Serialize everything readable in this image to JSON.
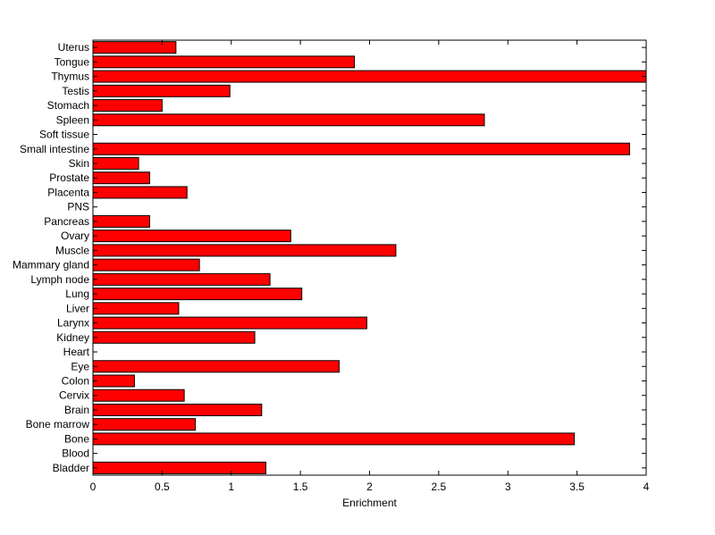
{
  "chart_data": {
    "type": "bar",
    "orientation": "horizontal",
    "title": "",
    "xlabel": "Enrichment",
    "ylabel": "",
    "xlim": [
      0,
      4
    ],
    "xticks": [
      0,
      0.5,
      1,
      1.5,
      2,
      2.5,
      3,
      3.5,
      4
    ],
    "xtick_labels": [
      "0",
      "0.5",
      "1",
      "1.5",
      "2",
      "2.5",
      "3",
      "3.5",
      "4"
    ],
    "grid": false,
    "bar_color": "#ff0000",
    "categories": [
      "Uterus",
      "Tongue",
      "Thymus",
      "Testis",
      "Stomach",
      "Spleen",
      "Soft tissue",
      "Small intestine",
      "Skin",
      "Prostate",
      "Placenta",
      "PNS",
      "Pancreas",
      "Ovary",
      "Muscle",
      "Mammary gland",
      "Lymph node",
      "Lung",
      "Liver",
      "Larynx",
      "Kidney",
      "Heart",
      "Eye",
      "Colon",
      "Cervix",
      "Brain",
      "Bone marrow",
      "Bone",
      "Blood",
      "Bladder"
    ],
    "values": [
      0.6,
      1.89,
      4.0,
      0.99,
      0.5,
      2.83,
      0,
      3.88,
      0.33,
      0.41,
      0.68,
      0,
      0.41,
      1.43,
      2.19,
      0.77,
      1.28,
      1.51,
      0.62,
      1.98,
      1.17,
      0,
      1.78,
      0.3,
      0.66,
      1.22,
      0.74,
      3.48,
      0,
      1.25
    ]
  }
}
